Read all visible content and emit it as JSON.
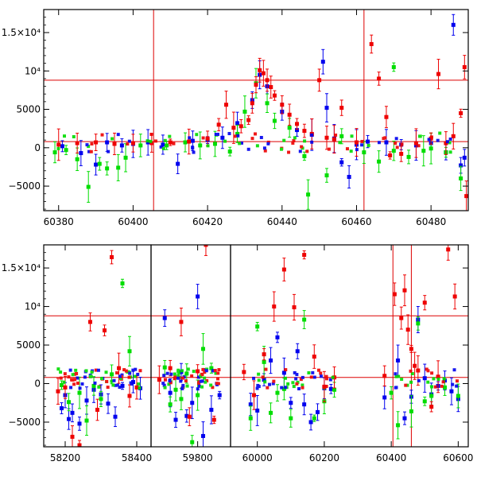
{
  "chart_data": [
    {
      "type": "scatter",
      "panel": "top",
      "xlim": [
        60376,
        60490
      ],
      "ylim": [
        -8200,
        18000
      ],
      "x_ticks": [
        {
          "value": 60380,
          "label": "60380"
        },
        {
          "value": 60400,
          "label": "60400"
        },
        {
          "value": 60420,
          "label": "60420"
        },
        {
          "value": 60440,
          "label": "60440"
        },
        {
          "value": 60460,
          "label": "60460"
        },
        {
          "value": 60480,
          "label": "60480"
        }
      ],
      "y_ticks": [
        {
          "value": -5000,
          "label": "−5000"
        },
        {
          "value": 0,
          "label": "0"
        },
        {
          "value": 5000,
          "label": "5000"
        },
        {
          "value": 10000,
          "label": "10⁴"
        },
        {
          "value": 15000,
          "label": "1.5×10⁴"
        }
      ],
      "hlines": [
        800,
        8800
      ],
      "vlines": [
        60405.5,
        60462
      ],
      "series": [
        {
          "color": "#0000ee",
          "points": [
            [
              60381,
              200
            ],
            [
              60386,
              -700
            ],
            [
              60390,
              -2200
            ],
            [
              60393,
              700
            ],
            [
              60397,
              300
            ],
            [
              60400,
              500
            ],
            [
              60404,
              700
            ],
            [
              60408,
              400
            ],
            [
              60412,
              -2100
            ],
            [
              60416,
              900
            ],
            [
              60420,
              1000
            ],
            [
              60424,
              1300
            ],
            [
              60428,
              3200
            ],
            [
              60432,
              6200
            ],
            [
              60434,
              9500
            ],
            [
              60436,
              8000
            ],
            [
              60440,
              4700
            ],
            [
              60444,
              2300
            ],
            [
              60448,
              1700
            ],
            [
              60451,
              11200
            ],
            [
              60452,
              5200
            ],
            [
              60454,
              1200
            ],
            [
              60456,
              -1900
            ],
            [
              60458,
              -3800
            ],
            [
              60460,
              400
            ],
            [
              60463,
              800
            ],
            [
              60468,
              700
            ],
            [
              60472,
              400
            ],
            [
              60476,
              300
            ],
            [
              60480,
              600
            ],
            [
              60484,
              -600
            ],
            [
              60486,
              16000
            ],
            [
              60488,
              -2300
            ],
            [
              60489,
              -1300
            ]
          ]
        },
        {
          "color": "#00dd00",
          "points": [
            [
              60379,
              -600
            ],
            [
              60382,
              -300
            ],
            [
              60385,
              -1500
            ],
            [
              60388,
              -5100
            ],
            [
              60391,
              -2100
            ],
            [
              60393,
              -2700
            ],
            [
              60396,
              -2600
            ],
            [
              60398,
              -1300
            ],
            [
              60402,
              300
            ],
            [
              60409,
              300
            ],
            [
              60414,
              700
            ],
            [
              60418,
              300
            ],
            [
              60422,
              500
            ],
            [
              60426,
              -500
            ],
            [
              60428,
              1800
            ],
            [
              60430,
              4700
            ],
            [
              60433,
              8400
            ],
            [
              60436,
              5800
            ],
            [
              60438,
              3500
            ],
            [
              60442,
              2600
            ],
            [
              60446,
              -1100
            ],
            [
              60447,
              -6100
            ],
            [
              60452,
              -3600
            ],
            [
              60456,
              1500
            ],
            [
              60462,
              -600
            ],
            [
              60466,
              -1800
            ],
            [
              60470,
              -400
            ],
            [
              60474,
              -1200
            ],
            [
              60478,
              -400
            ],
            [
              60480,
              -100
            ],
            [
              60484,
              -600
            ],
            [
              60488,
              -4000
            ],
            [
              60470,
              10500
            ]
          ]
        },
        {
          "color": "#ee0000",
          "points": [
            [
              60380,
              400
            ],
            [
              60385,
              600
            ],
            [
              60390,
              700
            ],
            [
              60395,
              500
            ],
            [
              60400,
              600
            ],
            [
              60405,
              600
            ],
            [
              60410,
              700
            ],
            [
              60415,
              800
            ],
            [
              60420,
              1200
            ],
            [
              60423,
              3000
            ],
            [
              60425,
              5600
            ],
            [
              60427,
              2600
            ],
            [
              60429,
              2800
            ],
            [
              60431,
              3600
            ],
            [
              60432,
              5800
            ],
            [
              60433,
              8200
            ],
            [
              60434,
              10100
            ],
            [
              60435,
              9700
            ],
            [
              60436,
              8800
            ],
            [
              60437,
              7900
            ],
            [
              60438,
              6800
            ],
            [
              60440,
              5600
            ],
            [
              60442,
              4300
            ],
            [
              60444,
              3100
            ],
            [
              60446,
              2200
            ],
            [
              60448,
              1800
            ],
            [
              60450,
              8800
            ],
            [
              60452,
              1300
            ],
            [
              60454,
              1100
            ],
            [
              60456,
              5200
            ],
            [
              60460,
              700
            ],
            [
              60464,
              13500
            ],
            [
              60466,
              9000
            ],
            [
              60468,
              4000
            ],
            [
              60469,
              -1000
            ],
            [
              60472,
              -800
            ],
            [
              60476,
              600
            ],
            [
              60480,
              1200
            ],
            [
              60482,
              9600
            ],
            [
              60484,
              600
            ],
            [
              60486,
              1500
            ],
            [
              60488,
              4500
            ],
            [
              60489,
              10500
            ],
            [
              60489.5,
              -6300
            ]
          ]
        }
      ]
    },
    {
      "type": "scatter",
      "panel": "bottom",
      "broken_x_axis": true,
      "ylim": [
        -8200,
        18000
      ],
      "segments": [
        {
          "xlim": [
            58140,
            58440
          ],
          "x_ticks": [
            {
              "value": 58200,
              "label": "58200"
            },
            {
              "value": 58400,
              "label": "58400"
            }
          ]
        },
        {
          "xlim": [
            59630,
            59920
          ],
          "x_ticks": [
            {
              "value": 59800,
              "label": "59800"
            }
          ]
        },
        {
          "xlim": [
            59920,
            60630
          ],
          "x_ticks": [
            {
              "value": 60000,
              "label": "60000"
            },
            {
              "value": 60200,
              "label": "60200"
            },
            {
              "value": 60400,
              "label": "60400"
            },
            {
              "value": 60600,
              "label": "60600"
            }
          ]
        }
      ],
      "y_ticks": [
        {
          "value": -5000,
          "label": "−5000"
        },
        {
          "value": 0,
          "label": "0"
        },
        {
          "value": 5000,
          "label": "5000"
        },
        {
          "value": 10000,
          "label": "10⁴"
        },
        {
          "value": 15000,
          "label": "1.5×10⁴"
        }
      ],
      "hlines": [
        800,
        8800
      ],
      "vlines": [
        60405,
        60460
      ],
      "series": [
        {
          "color": "#0000ee",
          "points": [
            [
              58190,
              -3200
            ],
            [
              58200,
              -1500
            ],
            [
              58210,
              -4600
            ],
            [
              58220,
              -3800
            ],
            [
              58240,
              -5200
            ],
            [
              58260,
              -2200
            ],
            [
              58280,
              -800
            ],
            [
              58300,
              -1400
            ],
            [
              58320,
              -2600
            ],
            [
              58340,
              -4300
            ],
            [
              58360,
              -300
            ],
            [
              58390,
              200
            ],
            [
              58410,
              -600
            ],
            [
              59680,
              8500
            ],
            [
              59700,
              -1200
            ],
            [
              59720,
              -4700
            ],
            [
              59740,
              1500
            ],
            [
              59760,
              -4200
            ],
            [
              59780,
              -2500
            ],
            [
              59800,
              11300
            ],
            [
              59820,
              -6800
            ],
            [
              59850,
              -3400
            ],
            [
              59880,
              -1500
            ],
            [
              59980,
              -2700
            ],
            [
              60000,
              -3500
            ],
            [
              60020,
              500
            ],
            [
              60040,
              3000
            ],
            [
              60060,
              6000
            ],
            [
              60080,
              1400
            ],
            [
              60100,
              -2500
            ],
            [
              60120,
              4200
            ],
            [
              60140,
              -2700
            ],
            [
              60160,
              -5000
            ],
            [
              60180,
              -3700
            ],
            [
              60200,
              -600
            ],
            [
              60220,
              -700
            ],
            [
              60380,
              -1800
            ],
            [
              60420,
              3000
            ],
            [
              60440,
              -4500
            ],
            [
              60460,
              -1700
            ],
            [
              60480,
              8300
            ],
            [
              60500,
              700
            ],
            [
              60520,
              -1400
            ],
            [
              60540,
              -300
            ],
            [
              60560,
              400
            ],
            [
              60580,
              -1000
            ],
            [
              60600,
              -2000
            ]
          ]
        },
        {
          "color": "#00dd00",
          "points": [
            [
              58190,
              -200
            ],
            [
              58210,
              -2400
            ],
            [
              58240,
              -1200
            ],
            [
              58260,
              -4800
            ],
            [
              58280,
              -300
            ],
            [
              58300,
              -2000
            ],
            [
              58330,
              1200
            ],
            [
              58360,
              13000
            ],
            [
              58380,
              4200
            ],
            [
              59680,
              2100
            ],
            [
              59700,
              -2700
            ],
            [
              59720,
              -800
            ],
            [
              59740,
              -2000
            ],
            [
              59760,
              1300
            ],
            [
              59780,
              -7600
            ],
            [
              59800,
              -1500
            ],
            [
              59820,
              4500
            ],
            [
              59850,
              2000
            ],
            [
              59980,
              -4500
            ],
            [
              60000,
              7400
            ],
            [
              60020,
              2800
            ],
            [
              60040,
              -3800
            ],
            [
              60060,
              -1200
            ],
            [
              60080,
              -700
            ],
            [
              60100,
              -4500
            ],
            [
              60140,
              8300
            ],
            [
              60170,
              -4500
            ],
            [
              60200,
              -2300
            ],
            [
              60230,
              -800
            ],
            [
              60400,
              -1200
            ],
            [
              60420,
              -5400
            ],
            [
              60460,
              -3600
            ],
            [
              60480,
              7800
            ],
            [
              60500,
              -2300
            ],
            [
              60520,
              -1600
            ],
            [
              60560,
              -500
            ],
            [
              60600,
              -1600
            ]
          ]
        },
        {
          "color": "#ee0000",
          "points": [
            [
              58180,
              -1000
            ],
            [
              58200,
              -500
            ],
            [
              58220,
              -6900
            ],
            [
              58240,
              -8000
            ],
            [
              58270,
              8000
            ],
            [
              58290,
              -3400
            ],
            [
              58310,
              6900
            ],
            [
              58330,
              16400
            ],
            [
              58350,
              2000
            ],
            [
              58380,
              -1600
            ],
            [
              58400,
              -500
            ],
            [
              59660,
              500
            ],
            [
              59700,
              2000
            ],
            [
              59740,
              8000
            ],
            [
              59770,
              -4300
            ],
            [
              59800,
              1600
            ],
            [
              59830,
              18000
            ],
            [
              59860,
              -4700
            ],
            [
              59960,
              1500
            ],
            [
              59990,
              -1500
            ],
            [
              60020,
              3800
            ],
            [
              60050,
              10000
            ],
            [
              60080,
              14800
            ],
            [
              60110,
              9900
            ],
            [
              60140,
              16700
            ],
            [
              60170,
              3500
            ],
            [
              60200,
              -400
            ],
            [
              60230,
              800
            ],
            [
              60380,
              1000
            ],
            [
              60410,
              11600
            ],
            [
              60430,
              8500
            ],
            [
              60440,
              12100
            ],
            [
              60450,
              7000
            ],
            [
              60460,
              4500
            ],
            [
              60470,
              2300
            ],
            [
              60480,
              1700
            ],
            [
              60500,
              10500
            ],
            [
              60520,
              -3000
            ],
            [
              60540,
              900
            ],
            [
              60570,
              17400
            ],
            [
              60590,
              11300
            ]
          ]
        }
      ]
    }
  ]
}
